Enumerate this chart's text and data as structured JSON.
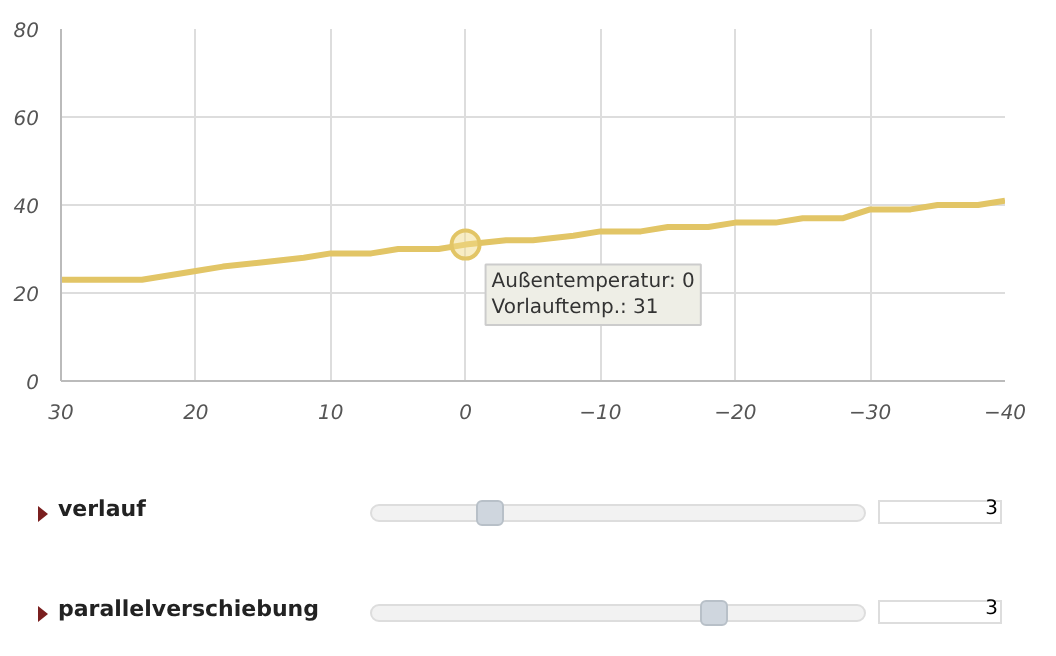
{
  "chart_data": {
    "type": "line",
    "x": [
      30,
      24,
      20,
      18,
      15,
      12,
      10,
      7,
      5,
      2,
      0,
      -3,
      -5,
      -8,
      -10,
      -13,
      -15,
      -18,
      -20,
      -23,
      -25,
      -28,
      -30,
      -33,
      -35,
      -38,
      -40
    ],
    "series": [
      {
        "color": "#e2c566",
        "values": [
          23,
          23,
          25,
          26,
          27,
          28,
          29,
          29,
          30,
          30,
          31,
          32,
          32,
          33,
          34,
          34,
          35,
          35,
          36,
          36,
          37,
          37,
          39,
          39,
          40,
          40,
          41
        ]
      }
    ],
    "xlim": [
      30,
      -40
    ],
    "ylim": [
      0,
      80
    ],
    "xticks": [
      30,
      20,
      10,
      0,
      -10,
      -20,
      -30,
      -40
    ],
    "yticks": [
      0,
      20,
      40,
      60,
      80
    ],
    "grid": true,
    "annotations": [
      {
        "text": "Außentemperatur: 0\nVorlauftemp.: 31",
        "x": 0,
        "y": 31
      },
      "verlauf",
      "3",
      "parallelverschiebung",
      "3"
    ]
  }
}
